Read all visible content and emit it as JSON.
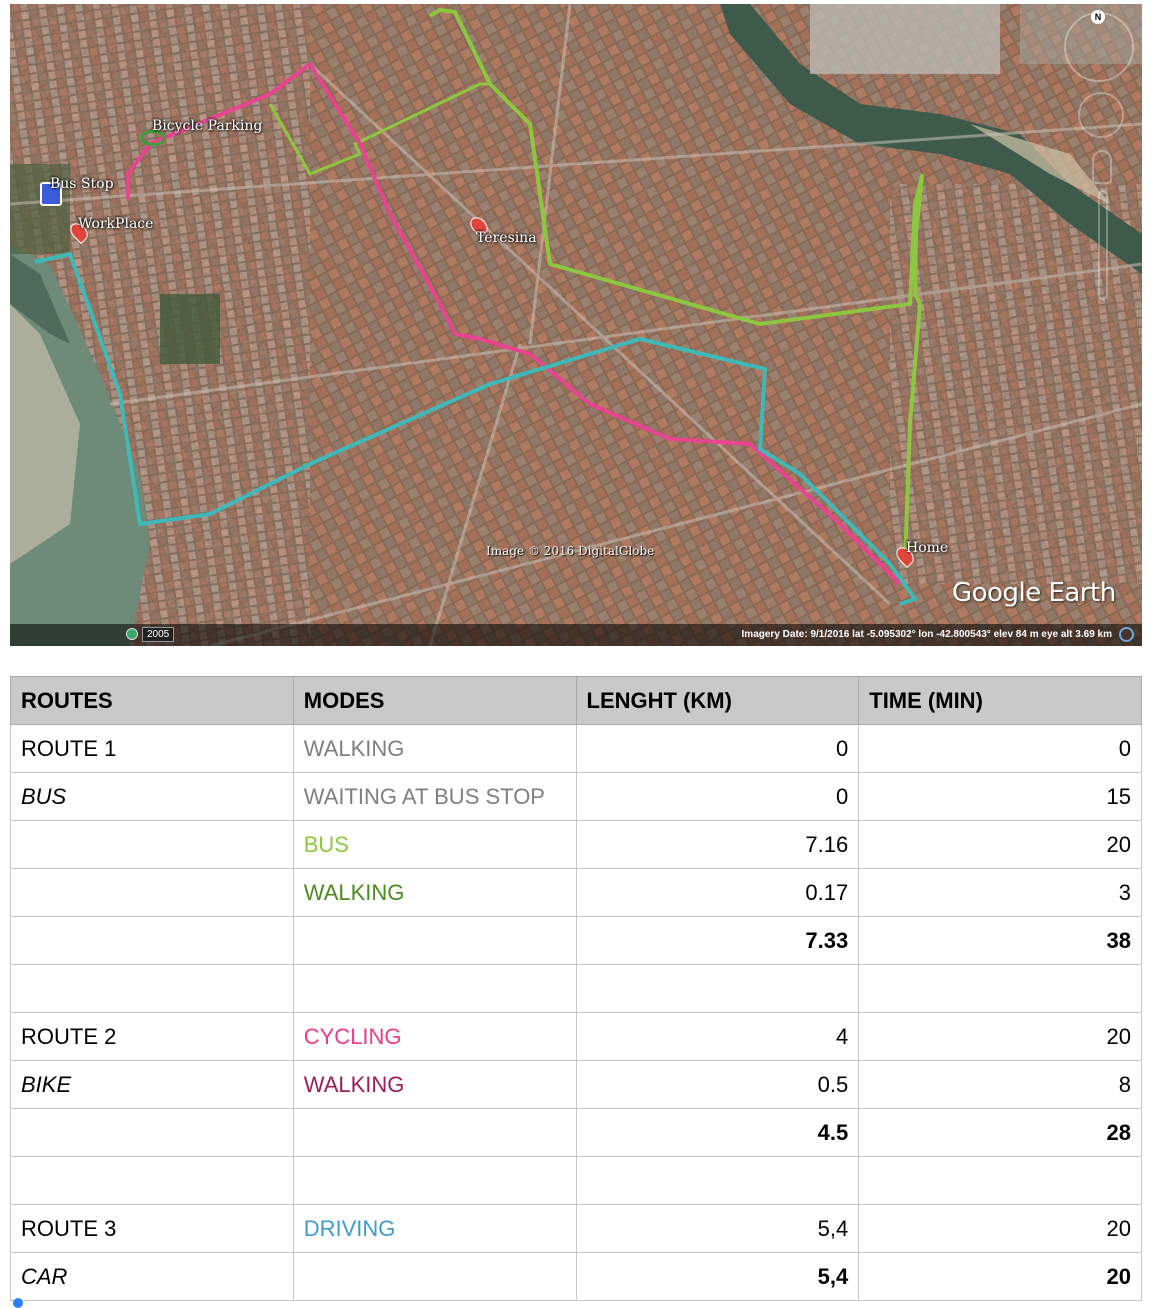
{
  "map": {
    "labels": {
      "bus_stop": "Bus Stop",
      "bicycle_parking": "Bicycle Parking",
      "workplace": "WorkPlace",
      "teresina": "Teresina",
      "home": "Home"
    },
    "credit": "Image © 2016 DigitalGlobe",
    "brand": "Google Earth",
    "year": "2005",
    "north": "N",
    "readout": "Imagery Date: 9/1/2016      lat  -5.095302°  lon  -42.800543°  elev   84 m     eye alt  3.69 km",
    "route_colors": {
      "bus": "#8dc63f",
      "bike": "#e8448f",
      "car": "#3fb8b8"
    }
  },
  "table": {
    "headers": [
      "ROUTES",
      "MODES",
      "LENGHT (KM)",
      "TIME (MIN)"
    ],
    "rows": [
      {
        "route": "ROUTE 1",
        "mode": "WALKING",
        "length": "0",
        "time": "0",
        "mode_color": "#7f7f7f"
      },
      {
        "route": "BUS",
        "mode": "WAITING AT BUS STOP",
        "length": "0",
        "time": "15",
        "mode_color": "#7f7f7f",
        "route_italic": true
      },
      {
        "route": "",
        "mode": "BUS",
        "length": "7.16",
        "time": "20",
        "mode_color": "#8dc63f"
      },
      {
        "route": "",
        "mode": "WALKING",
        "length": "0.17",
        "time": "3",
        "mode_color": "#4d8a1f"
      },
      {
        "route": "",
        "mode": "",
        "length": "7.33",
        "time": "38",
        "total": true
      },
      {
        "route": "",
        "mode": "",
        "length": "",
        "time": ""
      },
      {
        "route": "ROUTE 2",
        "mode": "CYCLING",
        "length": "4",
        "time": "20",
        "mode_color": "#ee3a8c"
      },
      {
        "route": "BIKE",
        "mode": "WALKING",
        "length": "0.5",
        "time": "8",
        "mode_color": "#9b1d5a",
        "route_italic": true
      },
      {
        "route": "",
        "mode": "",
        "length": "4.5",
        "time": "28",
        "total": true
      },
      {
        "route": "",
        "mode": "",
        "length": "",
        "time": ""
      },
      {
        "route": "ROUTE 3",
        "mode": "DRIVING",
        "length": "5,4",
        "time": "20",
        "mode_color": "#3d9bd0"
      },
      {
        "route": "CAR",
        "mode": "",
        "length": "5,4",
        "time": "20",
        "total": true,
        "route_italic": true
      }
    ]
  }
}
